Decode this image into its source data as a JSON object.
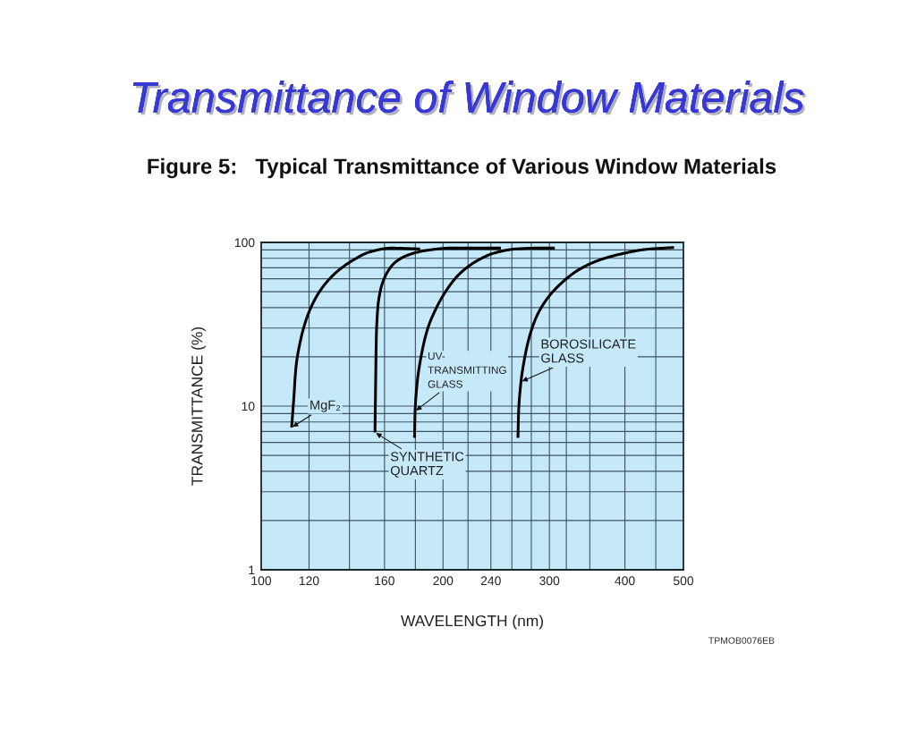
{
  "chart_data": {
    "type": "line",
    "title": "Transmittance of Window Materials",
    "subtitle": "Figure 5:   Typical Transmittance of Various Window Materials",
    "xlabel": "WAVELENGTH (nm)",
    "ylabel": "TRANSMITTANCE (%)",
    "annotations": [
      "TPMOB0076EB"
    ],
    "log": "xy",
    "grid": true,
    "line_style": "solid",
    "xlim": [
      100,
      500
    ],
    "ylim": [
      1,
      100
    ],
    "xticks": [
      100,
      120,
      {
        "value": 140,
        "label": null
      },
      160,
      {
        "value": 180,
        "label": null
      },
      200,
      {
        "value": 220,
        "label": null
      },
      240,
      {
        "value": 260,
        "label": null
      },
      {
        "value": 280,
        "label": null
      },
      300,
      {
        "value": 320,
        "label": null
      },
      {
        "value": 350,
        "label": null
      },
      400,
      {
        "value": 450,
        "label": null
      },
      500
    ],
    "yticks": [
      1,
      {
        "value": 2,
        "label": null
      },
      {
        "value": 3,
        "label": null
      },
      {
        "value": 4,
        "label": null
      },
      {
        "value": 5,
        "label": null
      },
      {
        "value": 6,
        "label": null
      },
      {
        "value": 7,
        "label": null
      },
      {
        "value": 8,
        "label": null
      },
      {
        "value": 9,
        "label": null
      },
      10,
      {
        "value": 20,
        "label": null
      },
      {
        "value": 30,
        "label": null
      },
      {
        "value": 40,
        "label": null
      },
      {
        "value": 50,
        "label": null
      },
      {
        "value": 60,
        "label": null
      },
      {
        "value": 70,
        "label": null
      },
      {
        "value": 80,
        "label": null
      },
      {
        "value": 90,
        "label": null
      },
      100
    ],
    "series": [
      {
        "name": "MgF₂",
        "color": "#000000",
        "x": [
          112.3,
          113.2,
          114.2,
          116.5,
          119.8,
          124.7,
          132.0,
          141.3,
          151.3,
          163.9,
          183.2
        ],
        "values": [
          7.4,
          11,
          17.4,
          26.4,
          37,
          49.6,
          63.8,
          77.1,
          87.4,
          92.3,
          91.2
        ]
      },
      {
        "name": "SYNTHETIC\nQUARTZ",
        "color": "#000000",
        "x": [
          154.3,
          154.7,
          155.1,
          156.0,
          157.7,
          161.0,
          166.6,
          175.3,
          187.6,
          205.5,
          249.3
        ],
        "values": [
          6.9,
          14.1,
          26.4,
          40.3,
          51.8,
          63.8,
          75.5,
          83.9,
          89.3,
          92.3,
          92.3
        ]
      },
      {
        "name": "UV-\nTRANSMITTING\nGLASS",
        "color": "#000000",
        "x": [
          179.4,
          179.8,
          181.3,
          184.6,
          188.8,
          195.3,
          203.2,
          212.6,
          227.5,
          243.6,
          264.0,
          285.9,
          306.2
        ],
        "values": [
          6.4,
          9.3,
          14.1,
          21.5,
          30,
          40.3,
          51.8,
          63.8,
          77.1,
          86.3,
          91.2,
          92.3,
          92.3
        ]
      },
      {
        "name": "BOROSILICATE\nGLASS",
        "color": "#000000",
        "x": [
          266.1,
          266.8,
          269.2,
          273.0,
          277.9,
          285.9,
          297.8,
          313.9,
          335.3,
          362.9,
          397.6,
          434.8,
          482.5
        ],
        "values": [
          6.4,
          9.3,
          14.1,
          19.7,
          26.4,
          35.5,
          45.6,
          56.3,
          68.0,
          78.0,
          85.6,
          90.8,
          93.1
        ]
      }
    ]
  }
}
